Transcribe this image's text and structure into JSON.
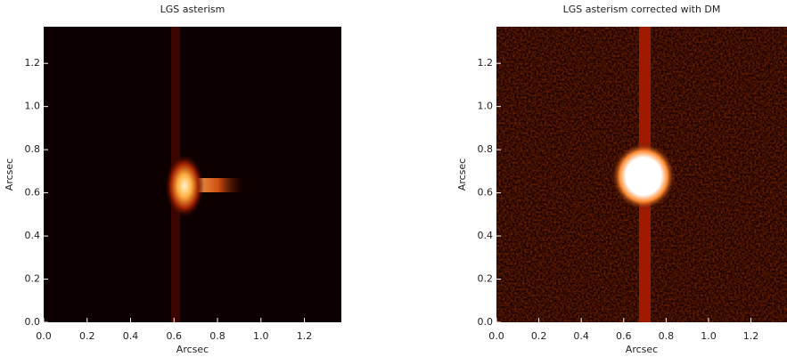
{
  "chart_data": [
    {
      "type": "image",
      "title": "LGS asterism",
      "x_label": "Arcsec",
      "y_label": "Arcsec",
      "xlim": [
        0,
        1.37
      ],
      "ylim": [
        0,
        1.37
      ],
      "xticks": [
        {
          "value": 0,
          "label": "0.0"
        },
        0.2,
        0.4,
        0.6,
        0.8,
        {
          "value": 1,
          "label": "1.0"
        },
        1.2
      ],
      "yticks": [
        {
          "value": 0,
          "label": "0.0"
        },
        0.2,
        0.4,
        0.6,
        0.8,
        {
          "value": 1,
          "label": "1.0"
        },
        1.2
      ]
    },
    {
      "type": "image",
      "title": "LGS asterism corrected with DM",
      "x_label": "Arcsec",
      "y_label": "Arcsec",
      "xlim": [
        0,
        1.37
      ],
      "ylim": [
        0,
        1.37
      ],
      "xticks": [
        {
          "value": 0,
          "label": "0.0"
        },
        0.2,
        0.4,
        0.6,
        0.8,
        {
          "value": 1,
          "label": "1.0"
        },
        1.2
      ],
      "yticks": [
        {
          "value": 0,
          "label": "0.0"
        },
        0.2,
        0.4,
        0.6,
        0.8,
        {
          "value": 1,
          "label": "1.0"
        },
        1.2
      ]
    }
  ]
}
